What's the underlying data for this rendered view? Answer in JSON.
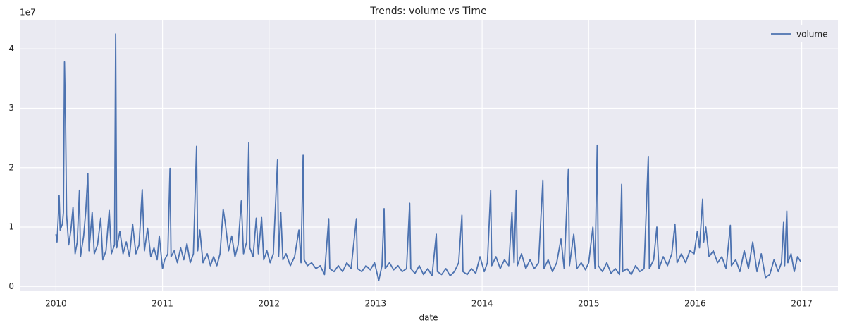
{
  "chart_data": {
    "type": "line",
    "title": "Trends: volume vs Time",
    "xlabel": "date",
    "y_offset_label": "1e7",
    "xlim": [
      2009.66,
      2017.34
    ],
    "xticks": [
      2010,
      2011,
      2012,
      2013,
      2014,
      2015,
      2016,
      2017
    ],
    "ylim": [
      -0.08,
      4.49
    ],
    "yticks": [
      0,
      1,
      2,
      3,
      4
    ],
    "grid": true,
    "legend": "upper right",
    "background": "#eaeaf2",
    "x": [
      2010.0,
      2010.01,
      2010.02,
      2010.03,
      2010.04,
      2010.06,
      2010.07,
      2010.08,
      2010.09,
      2010.1,
      2010.12,
      2010.14,
      2010.16,
      2010.18,
      2010.2,
      2010.22,
      2010.23,
      2010.26,
      2010.28,
      2010.3,
      2010.31,
      2010.34,
      2010.36,
      2010.39,
      2010.42,
      2010.44,
      2010.47,
      2010.5,
      2010.52,
      2010.55,
      2010.56,
      2010.57,
      2010.6,
      2010.63,
      2010.66,
      2010.69,
      2010.72,
      2010.75,
      2010.78,
      2010.81,
      2010.83,
      2010.86,
      2010.89,
      2010.92,
      2010.95,
      2010.97,
      2011.0,
      2011.02,
      2011.05,
      2011.07,
      2011.08,
      2011.11,
      2011.14,
      2011.17,
      2011.2,
      2011.23,
      2011.26,
      2011.29,
      2011.32,
      2011.33,
      2011.35,
      2011.38,
      2011.42,
      2011.45,
      2011.48,
      2011.51,
      2011.54,
      2011.57,
      2011.59,
      2011.62,
      2011.65,
      2011.68,
      2011.71,
      2011.74,
      2011.76,
      2011.79,
      2011.81,
      2011.82,
      2011.85,
      2011.88,
      2011.9,
      2011.93,
      2011.95,
      2011.98,
      2012.01,
      2012.04,
      2012.08,
      2012.09,
      2012.11,
      2012.13,
      2012.16,
      2012.2,
      2012.24,
      2012.28,
      2012.3,
      2012.32,
      2012.33,
      2012.36,
      2012.4,
      2012.44,
      2012.48,
      2012.52,
      2012.56,
      2012.57,
      2012.61,
      2012.65,
      2012.69,
      2012.73,
      2012.77,
      2012.82,
      2012.83,
      2012.87,
      2012.91,
      2012.95,
      2012.99,
      2013.03,
      2013.06,
      2013.08,
      2013.09,
      2013.13,
      2013.17,
      2013.21,
      2013.25,
      2013.29,
      2013.32,
      2013.33,
      2013.37,
      2013.41,
      2013.45,
      2013.49,
      2013.53,
      2013.57,
      2013.58,
      2013.62,
      2013.66,
      2013.7,
      2013.74,
      2013.78,
      2013.81,
      2013.82,
      2013.86,
      2013.9,
      2013.94,
      2013.98,
      2014.02,
      2014.05,
      2014.08,
      2014.09,
      2014.13,
      2014.17,
      2014.21,
      2014.25,
      2014.28,
      2014.3,
      2014.32,
      2014.33,
      2014.37,
      2014.41,
      2014.45,
      2014.49,
      2014.53,
      2014.57,
      2014.58,
      2014.62,
      2014.66,
      2014.7,
      2014.74,
      2014.77,
      2014.81,
      2014.82,
      2014.86,
      2014.89,
      2014.93,
      2014.97,
      2015.0,
      2015.04,
      2015.06,
      2015.08,
      2015.09,
      2015.13,
      2015.17,
      2015.21,
      2015.25,
      2015.29,
      2015.31,
      2015.32,
      2015.36,
      2015.4,
      2015.44,
      2015.48,
      2015.52,
      2015.56,
      2015.57,
      2015.61,
      2015.64,
      2015.66,
      2015.7,
      2015.74,
      2015.78,
      2015.81,
      2015.83,
      2015.87,
      2015.91,
      2015.95,
      2015.99,
      2016.02,
      2016.04,
      2016.07,
      2016.08,
      2016.1,
      2016.13,
      2016.17,
      2016.21,
      2016.25,
      2016.29,
      2016.33,
      2016.34,
      2016.38,
      2016.42,
      2016.46,
      2016.5,
      2016.54,
      2016.58,
      2016.62,
      2016.66,
      2016.7,
      2016.74,
      2016.78,
      2016.81,
      2016.83,
      2016.84,
      2016.86,
      2016.87,
      2016.9,
      2016.93,
      2016.96,
      2016.99
    ],
    "series": [
      {
        "name": "volume",
        "color": "#4c72b0",
        "values": [
          0.88,
          0.75,
          1.1,
          1.53,
          0.95,
          1.05,
          1.25,
          3.78,
          2.8,
          1.2,
          0.7,
          0.95,
          1.33,
          0.55,
          0.75,
          1.62,
          0.5,
          0.85,
          1.27,
          1.9,
          0.6,
          1.25,
          0.55,
          0.7,
          1.15,
          0.45,
          0.6,
          1.28,
          0.55,
          0.7,
          4.25,
          0.65,
          0.93,
          0.55,
          0.75,
          0.5,
          1.05,
          0.55,
          0.7,
          1.63,
          0.6,
          0.98,
          0.5,
          0.65,
          0.45,
          0.85,
          0.3,
          0.45,
          0.55,
          1.99,
          0.5,
          0.6,
          0.4,
          0.65,
          0.45,
          0.72,
          0.4,
          0.55,
          2.36,
          0.6,
          0.95,
          0.4,
          0.55,
          0.35,
          0.5,
          0.35,
          0.55,
          1.3,
          1.05,
          0.6,
          0.85,
          0.5,
          0.7,
          1.44,
          0.55,
          0.75,
          2.42,
          0.65,
          0.5,
          1.15,
          0.55,
          1.16,
          0.45,
          0.6,
          0.4,
          0.55,
          2.13,
          0.5,
          1.25,
          0.45,
          0.55,
          0.35,
          0.5,
          0.95,
          0.4,
          2.21,
          0.45,
          0.35,
          0.4,
          0.3,
          0.35,
          0.2,
          1.14,
          0.3,
          0.25,
          0.35,
          0.25,
          0.4,
          0.3,
          1.14,
          0.3,
          0.25,
          0.35,
          0.28,
          0.4,
          0.1,
          0.35,
          1.31,
          0.3,
          0.4,
          0.28,
          0.35,
          0.25,
          0.3,
          1.4,
          0.3,
          0.22,
          0.35,
          0.2,
          0.3,
          0.18,
          0.88,
          0.25,
          0.2,
          0.3,
          0.18,
          0.25,
          0.4,
          1.2,
          0.25,
          0.2,
          0.3,
          0.22,
          0.5,
          0.25,
          0.4,
          1.62,
          0.35,
          0.5,
          0.3,
          0.45,
          0.35,
          1.25,
          0.4,
          1.62,
          0.35,
          0.55,
          0.3,
          0.45,
          0.3,
          0.4,
          1.79,
          0.3,
          0.45,
          0.25,
          0.4,
          0.8,
          0.3,
          1.98,
          0.35,
          0.88,
          0.3,
          0.4,
          0.28,
          0.4,
          1.0,
          0.3,
          2.38,
          0.35,
          0.25,
          0.4,
          0.22,
          0.3,
          0.2,
          1.72,
          0.25,
          0.3,
          0.2,
          0.35,
          0.25,
          0.3,
          2.19,
          0.3,
          0.45,
          1.0,
          0.3,
          0.5,
          0.35,
          0.55,
          1.05,
          0.4,
          0.55,
          0.4,
          0.6,
          0.55,
          0.93,
          0.65,
          1.47,
          0.75,
          1.0,
          0.5,
          0.6,
          0.4,
          0.5,
          0.3,
          1.03,
          0.35,
          0.45,
          0.25,
          0.6,
          0.3,
          0.75,
          0.25,
          0.55,
          0.15,
          0.2,
          0.45,
          0.25,
          0.4,
          1.08,
          0.35,
          1.27,
          0.4,
          0.55,
          0.25,
          0.5,
          0.42
        ]
      }
    ]
  }
}
